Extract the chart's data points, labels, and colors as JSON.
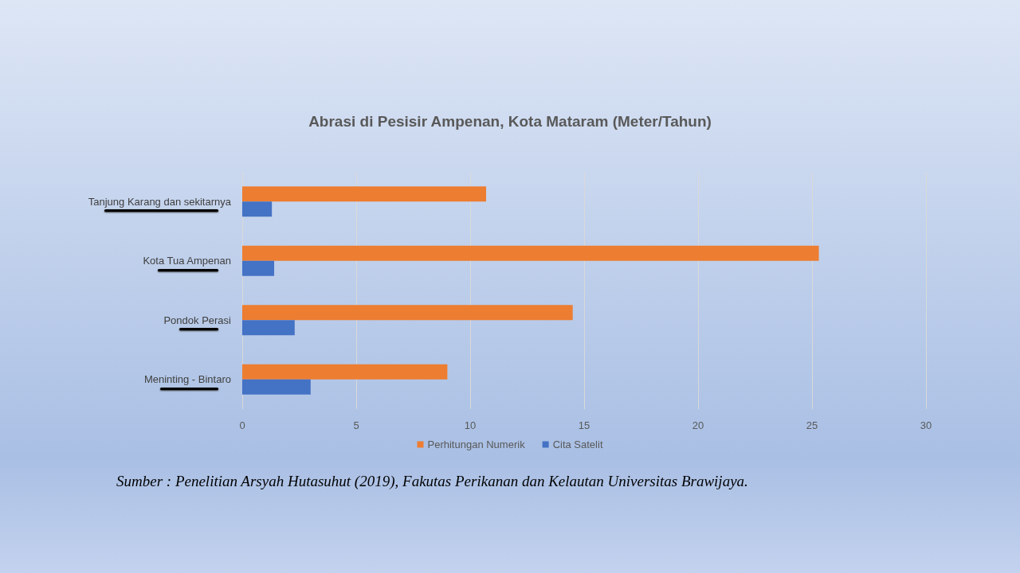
{
  "chart_data": {
    "type": "bar",
    "orientation": "horizontal",
    "title": "Abrasi di Pesisir Ampenan, Kota Mataram (Meter/Tahun)",
    "categories": [
      "Tanjung Karang dan sekitarnya",
      "Kota Tua Ampenan",
      "Pondok Perasi",
      "Meninting - Bintaro"
    ],
    "series": [
      {
        "name": "Perhitungan Numerik",
        "color": "#ed7d31",
        "values": [
          10.7,
          25.3,
          14.5,
          9.0
        ]
      },
      {
        "name": "Cita Satelit",
        "color": "#4472c4",
        "values": [
          1.3,
          1.4,
          2.3,
          3.0
        ]
      }
    ],
    "xlim": [
      0,
      30
    ],
    "xticks": [
      0,
      5,
      10,
      15,
      20,
      25,
      30
    ],
    "grid": "x",
    "legend": "bottom",
    "annotations": [
      "Sumber : Penelitian Arsyah Hutasuhut (2019), Fakutas Perikanan dan Kelautan Universitas Brawijaya."
    ]
  }
}
